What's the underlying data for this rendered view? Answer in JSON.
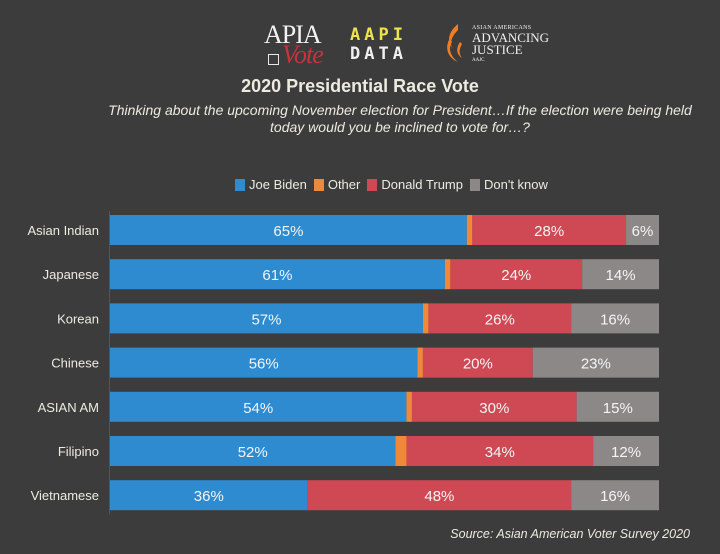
{
  "logos": {
    "apia_vote": {
      "top": "APIA",
      "bottom": "Vote"
    },
    "aapi_data": {
      "top": "AAPI",
      "bottom": "DATA"
    },
    "aajc": {
      "small": "ASIAN AMERICANS",
      "line1": "ADVANCING",
      "line2": "JUSTICE",
      "tiny": "AAJC"
    }
  },
  "chart_data": {
    "type": "bar",
    "orientation": "horizontal",
    "stacked": true,
    "title": "2020 Presidential Race Vote",
    "subtitle": "Thinking about the upcoming November election for President…If the election were being held today would you be inclined to vote for…?",
    "source": "Source: Asian American Voter Survey 2020",
    "legend_position": "top-center",
    "grid": false,
    "xlim": [
      0,
      100
    ],
    "categories": [
      "Asian Indian",
      "Japanese",
      "Korean",
      "Chinese",
      "ASIAN AM",
      "Filipino",
      "Vietnamese"
    ],
    "series": [
      {
        "name": "Joe Biden",
        "color": "#2e8bcf",
        "values": [
          65,
          61,
          57,
          56,
          54,
          52,
          36
        ],
        "show_labels": true
      },
      {
        "name": "Other",
        "color": "#f0883a",
        "values": [
          1,
          1,
          1,
          1,
          1,
          2,
          0
        ],
        "show_labels": false
      },
      {
        "name": "Donald Trump",
        "color": "#cf4955",
        "values": [
          28,
          24,
          26,
          20,
          30,
          34,
          48
        ],
        "show_labels": true
      },
      {
        "name": "Don't know",
        "color": "#8c8888",
        "values": [
          6,
          14,
          16,
          23,
          15,
          12,
          16
        ],
        "show_labels": true
      }
    ]
  }
}
